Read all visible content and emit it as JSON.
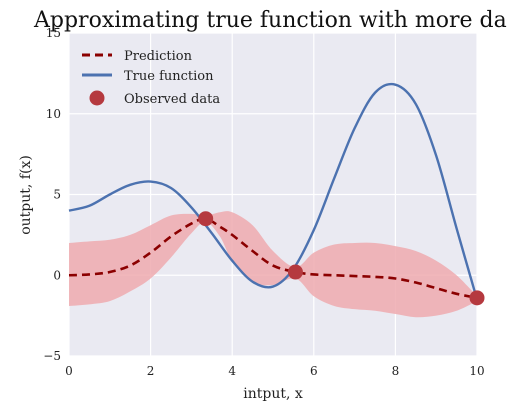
{
  "chart_data": {
    "type": "line",
    "title": "Approximating true function with more data",
    "xlabel": "intput, x",
    "ylabel": "output, f(x)",
    "xlim": [
      0,
      10
    ],
    "ylim": [
      -5,
      15
    ],
    "xticks": [
      0,
      2,
      4,
      6,
      8,
      10
    ],
    "yticks": [
      -5,
      0,
      5,
      10,
      15
    ],
    "grid": true,
    "legend": "top-left",
    "background_color": "#eaeaf2",
    "series": [
      {
        "name": "Prediction",
        "style": "dashed",
        "color": "#8b0000",
        "x": [
          0,
          0.5,
          1,
          1.5,
          2,
          2.5,
          3,
          3.35,
          3.7,
          4,
          4.5,
          5,
          5.55,
          6,
          6.5,
          7,
          7.5,
          8,
          8.5,
          9,
          9.5,
          10
        ],
        "y": [
          0,
          0.05,
          0.2,
          0.6,
          1.4,
          2.4,
          3.2,
          3.5,
          3.0,
          2.5,
          1.5,
          0.6,
          0.2,
          0.05,
          0,
          -0.05,
          -0.1,
          -0.2,
          -0.45,
          -0.8,
          -1.15,
          -1.4
        ]
      },
      {
        "name": "True function",
        "style": "solid",
        "color": "#4c72b0",
        "x": [
          0,
          0.5,
          1,
          1.5,
          2,
          2.5,
          3,
          3.5,
          4,
          4.5,
          5,
          5.5,
          6,
          6.5,
          7,
          7.5,
          8,
          8.5,
          9,
          9.5,
          10
        ],
        "y": [
          4.0,
          4.3,
          5.0,
          5.6,
          5.8,
          5.4,
          4.2,
          2.6,
          0.9,
          -0.4,
          -0.7,
          0.4,
          2.8,
          6.0,
          9.1,
          11.3,
          11.8,
          10.6,
          7.4,
          2.9,
          -1.5
        ]
      },
      {
        "name": "Observed data",
        "style": "markers",
        "color": "#b5393f",
        "x": [
          3.35,
          5.55,
          10
        ],
        "y": [
          3.5,
          0.2,
          -1.4
        ]
      }
    ],
    "confidence_band": {
      "color": "#eeaaaf",
      "x": [
        0,
        0.5,
        1,
        1.5,
        2,
        2.5,
        3,
        3.35,
        3.7,
        4,
        4.5,
        5,
        5.55,
        6,
        6.5,
        7,
        7.5,
        8,
        8.5,
        9,
        9.5,
        10
      ],
      "upper": [
        2.0,
        2.1,
        2.2,
        2.5,
        3.1,
        3.7,
        3.8,
        3.7,
        3.9,
        3.9,
        3.1,
        1.5,
        0.5,
        1.4,
        1.9,
        2.0,
        2.0,
        1.8,
        1.5,
        0.9,
        0.0,
        -1.3
      ],
      "lower": [
        -1.9,
        -1.8,
        -1.6,
        -1.0,
        -0.2,
        1.1,
        2.6,
        3.3,
        2.4,
        0.9,
        -0.4,
        -0.6,
        -0.2,
        -1.3,
        -1.9,
        -2.1,
        -2.2,
        -2.4,
        -2.6,
        -2.5,
        -2.2,
        -1.6
      ]
    }
  }
}
